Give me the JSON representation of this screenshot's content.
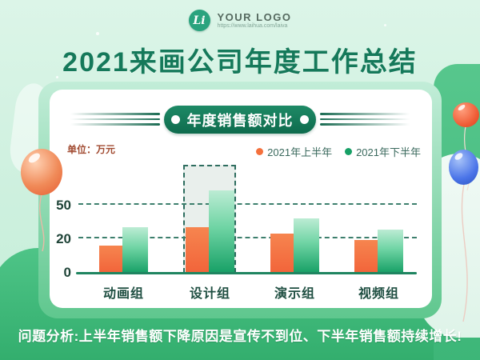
{
  "header": {
    "logo": {
      "monogram": "Li",
      "name": "YOUR LOGO",
      "url": "https://www.laihua.com/laiva"
    },
    "title": "2021来画公司年度工作总结"
  },
  "card": {
    "section_title": "年度销售额对比",
    "unit_label": "单位：万元"
  },
  "chart_data": {
    "type": "bar",
    "title": "年度销售额对比",
    "unit": "万元",
    "categories": [
      "动画组",
      "设计组",
      "演示组",
      "视频组"
    ],
    "series": [
      {
        "name": "2021年上半年",
        "color": "#f4703c",
        "values": [
          16,
          30,
          24,
          19
        ]
      },
      {
        "name": "2021年下半年",
        "color": "#17a066",
        "values": [
          30,
          63,
          38,
          28
        ]
      }
    ],
    "yticks": [
      0,
      20,
      50
    ],
    "ylim": [
      0,
      70
    ],
    "grid": "dashed-horizontal",
    "legend_position": "top-right",
    "highlight_category": "设计组",
    "highlight_style": "dashed-box"
  },
  "footer": {
    "analysis": "问题分析:上半年销售额下降原因是宣传不到位、下半年销售额持续增长!"
  },
  "colors": {
    "background_mint": "#d8f3e6",
    "band_green": "#3fbc7c",
    "title_green": "#15795a",
    "pill_green": "#14755a",
    "accent_orange": "#f4703c",
    "accent_green": "#17a066",
    "unit_red": "#a14b31",
    "balloon_orange": "#f08a58",
    "balloon_red": "#ef5a33",
    "balloon_blue": "#4a74e8"
  }
}
